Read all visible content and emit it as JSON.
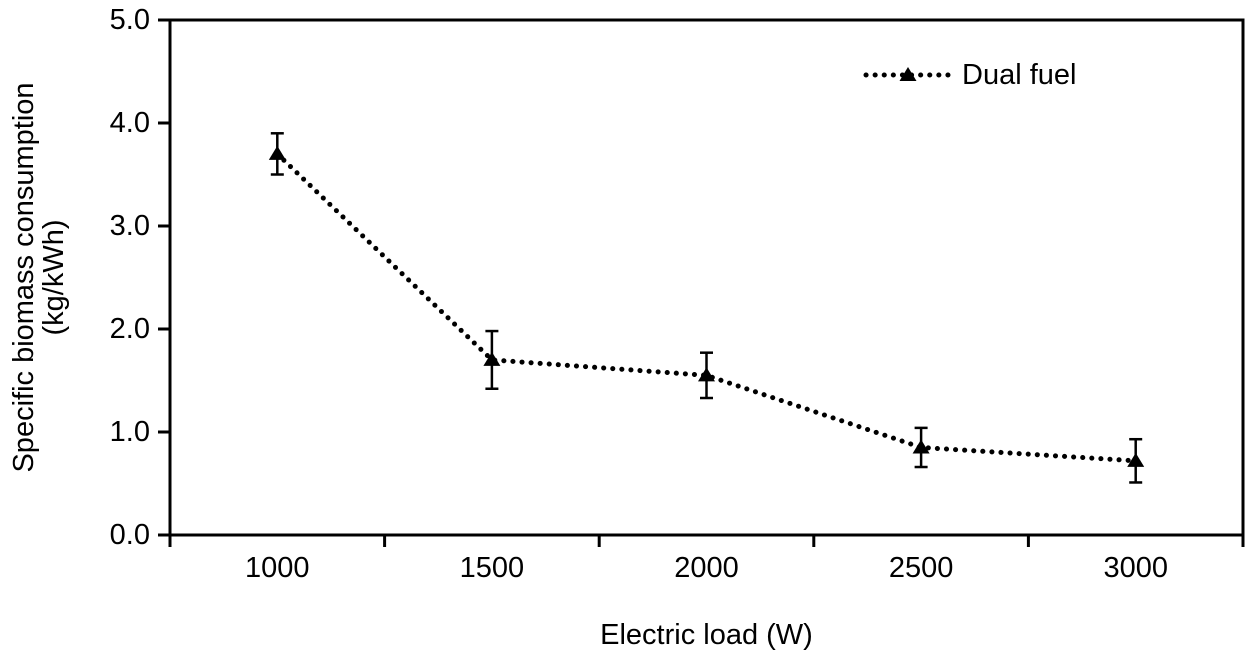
{
  "chart_data": {
    "type": "line",
    "title": "",
    "xlabel": "Electric load (W)",
    "ylabel": "Specific biomass consumption (kg/kWh)",
    "ylabel_lines": [
      "Specific biomass consumption",
      "(kg/kWh)"
    ],
    "categories": [
      "1000",
      "1500",
      "2000",
      "2500",
      "3000"
    ],
    "x_values": [
      1000,
      1500,
      2000,
      2500,
      3000
    ],
    "series": [
      {
        "name": "Dual fuel",
        "values": [
          3.7,
          1.7,
          1.55,
          0.85,
          0.72
        ],
        "y_errors": [
          0.2,
          0.28,
          0.22,
          0.19,
          0.21
        ],
        "marker": "filled-triangle",
        "line_style": "dotted",
        "color": "#000000"
      }
    ],
    "ylim": [
      0,
      5
    ],
    "y_ticks": [
      "0.0",
      "1.0",
      "2.0",
      "3.0",
      "4.0",
      "5.0"
    ],
    "y_tick_values": [
      0,
      1,
      2,
      3,
      4,
      5
    ],
    "grid": false,
    "plot_border": "full-box",
    "legend_position": "top-right-inside",
    "colors": {
      "background": "#ffffff",
      "axis": "#000000",
      "series": "#000000",
      "text": "#000000"
    }
  }
}
